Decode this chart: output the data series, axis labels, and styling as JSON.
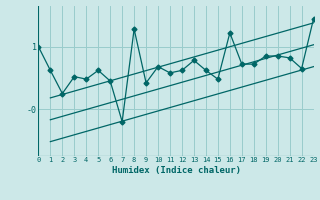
{
  "xlabel": "Humidex (Indice chaleur)",
  "bg_color": "#cce8e8",
  "line_color": "#006666",
  "grid_color": "#99cccc",
  "xlim": [
    0,
    23
  ],
  "ylim": [
    -0.75,
    1.65
  ],
  "xticks": [
    0,
    1,
    2,
    3,
    4,
    5,
    6,
    7,
    8,
    9,
    10,
    11,
    12,
    13,
    14,
    15,
    16,
    17,
    18,
    19,
    20,
    21,
    22,
    23
  ],
  "ytick_positions": [
    0.0,
    1.0
  ],
  "ytick_labels": [
    "-0",
    "1"
  ],
  "data_x": [
    0,
    1,
    2,
    3,
    4,
    5,
    6,
    7,
    8,
    9,
    10,
    11,
    12,
    13,
    14,
    15,
    16,
    17,
    18,
    19,
    20,
    21,
    22,
    23
  ],
  "data_y": [
    1.0,
    0.62,
    0.25,
    0.52,
    0.48,
    0.62,
    0.45,
    -0.2,
    1.28,
    0.42,
    0.68,
    0.58,
    0.62,
    0.78,
    0.62,
    0.48,
    1.22,
    0.72,
    0.72,
    0.85,
    0.85,
    0.82,
    0.65,
    1.45
  ],
  "upper_line_x": [
    1,
    23
  ],
  "upper_line_y": [
    0.18,
    1.38
  ],
  "lower_line_x": [
    1,
    23
  ],
  "lower_line_y": [
    -0.52,
    0.68
  ],
  "mid_line_x": [
    1,
    23
  ],
  "mid_line_y": [
    -0.17,
    1.03
  ],
  "lw": 0.9
}
